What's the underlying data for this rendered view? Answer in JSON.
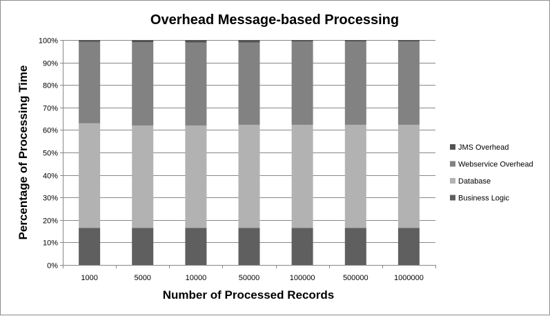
{
  "chart_data": {
    "type": "bar",
    "stacked": true,
    "percent_stacked": true,
    "title": "Overhead Message-based Processing",
    "xlabel": "Number of Processed Records",
    "ylabel": "Percentage of Processing Time",
    "categories": [
      "1000",
      "5000",
      "10000",
      "50000",
      "100000",
      "500000",
      "1000000"
    ],
    "y_ticks": [
      "0%",
      "10%",
      "20%",
      "30%",
      "40%",
      "50%",
      "60%",
      "70%",
      "80%",
      "90%",
      "100%"
    ],
    "ylim": [
      0,
      100
    ],
    "grid": "horizontal",
    "legend_position": "right",
    "series": [
      {
        "name": "Business Logic",
        "color": "#5f5f5f",
        "values": [
          16.5,
          16.5,
          16.5,
          16.5,
          16.5,
          16.5,
          16.5
        ]
      },
      {
        "name": "Database",
        "color": "#b2b2b2",
        "values": [
          46.5,
          45.5,
          45.5,
          45.8,
          45.8,
          45.8,
          45.8
        ]
      },
      {
        "name": "Webservice Overhead",
        "color": "#828282",
        "values": [
          36.2,
          37.0,
          36.9,
          36.6,
          37.1,
          37.1,
          37.1
        ]
      },
      {
        "name": "JMS Overhead",
        "color": "#525252",
        "values": [
          0.8,
          1.0,
          1.1,
          1.1,
          0.6,
          0.6,
          0.6
        ]
      }
    ]
  }
}
